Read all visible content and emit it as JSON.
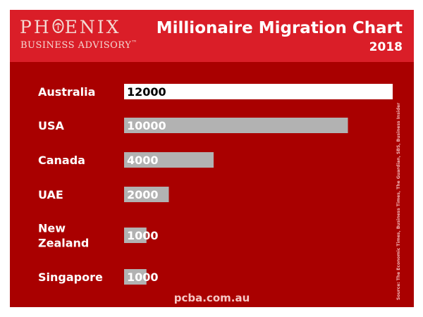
{
  "brand": {
    "name_start": "PH",
    "name_end": "ENIX",
    "tagline": "BUSINESS ADVISORY",
    "tagline_mark": "™"
  },
  "footer": {
    "url": "pcba.com.au"
  },
  "source_note": "Source: The Economic Times, Business Times, The Guardian, SBS, Business Insider",
  "colors": {
    "header": "#da1e28",
    "panel": "#a90000",
    "highlight_bar": "#ffffff",
    "bar": "#b2b2b2"
  },
  "chart_data": {
    "type": "bar",
    "orientation": "horizontal",
    "title": "Millionaire Migration Chart",
    "subtitle": "2018",
    "categories": [
      [
        "Australia"
      ],
      [
        "USA"
      ],
      [
        "Canada"
      ],
      [
        "UAE"
      ],
      [
        "New",
        "Zealand"
      ],
      [
        "Singapore"
      ]
    ],
    "values": [
      12000,
      10000,
      4000,
      2000,
      1000,
      1000
    ],
    "value_labels": [
      "12000",
      "10000",
      "4000",
      "2000",
      "1000",
      "1000"
    ],
    "xlim": [
      0,
      12000
    ],
    "grid": false,
    "legend": "none"
  }
}
